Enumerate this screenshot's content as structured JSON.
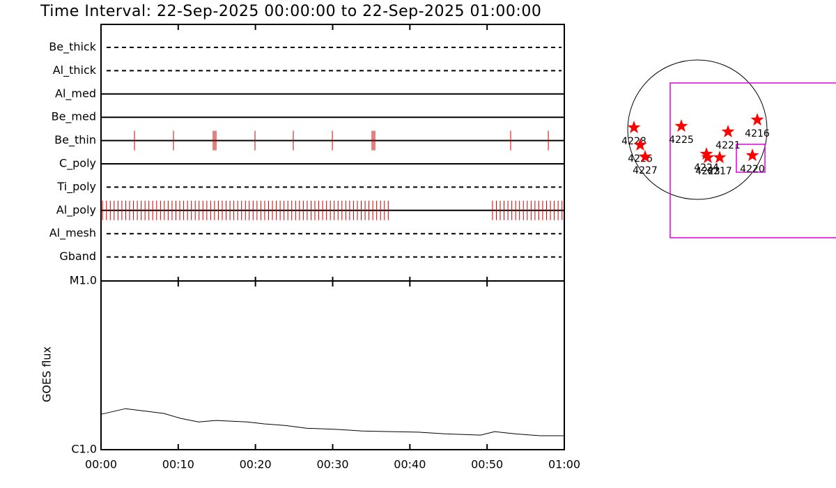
{
  "chart_data": [
    {
      "type": "timeline",
      "title": "Time Interval: 22-Sep-2025 00:00:00 to 22-Sep-2025 01:00:00",
      "xlim": [
        0,
        60
      ],
      "event_color": "#cc0000",
      "rows": [
        {
          "name": "Be_thick",
          "style": "dashed",
          "events": []
        },
        {
          "name": "Al_thick",
          "style": "dashed",
          "events": []
        },
        {
          "name": "Al_med",
          "style": "solid",
          "events": []
        },
        {
          "name": "Be_med",
          "style": "solid",
          "events": []
        },
        {
          "name": "Be_thin",
          "style": "solid",
          "events": [
            4.33,
            9.38,
            14.53,
            14.71,
            14.89,
            19.94,
            24.9,
            29.96,
            35.1,
            35.28,
            35.46,
            53.05,
            57.93
          ]
        },
        {
          "name": "C_poly",
          "style": "solid",
          "events": []
        },
        {
          "name": "Ti_poly",
          "style": "dashed",
          "events": []
        },
        {
          "name": "Al_poly",
          "style": "solid",
          "events": [
            0.2,
            0.7,
            1.2,
            1.7,
            2.2,
            2.7,
            3.2,
            3.7,
            4.2,
            4.7,
            5.2,
            5.7,
            6.2,
            6.7,
            7.2,
            7.7,
            8.2,
            8.7,
            9.2,
            9.7,
            10.2,
            10.7,
            11.2,
            11.7,
            12.2,
            12.7,
            13.2,
            13.7,
            14.2,
            14.7,
            15.2,
            15.7,
            16.2,
            16.7,
            17.2,
            17.7,
            18.2,
            18.7,
            19.2,
            19.7,
            20.2,
            20.7,
            21.2,
            21.7,
            22.2,
            22.7,
            23.2,
            23.7,
            24.2,
            24.7,
            25.2,
            25.7,
            26.2,
            26.7,
            27.2,
            27.7,
            28.2,
            28.7,
            29.2,
            29.7,
            30.2,
            30.7,
            31.2,
            31.7,
            32.2,
            32.7,
            33.2,
            33.7,
            34.2,
            34.7,
            35.2,
            35.7,
            36.2,
            36.7,
            37.2,
            50.7,
            51.2,
            51.7,
            52.2,
            52.7,
            53.2,
            53.7,
            54.2,
            54.7,
            55.2,
            55.7,
            56.2,
            56.7,
            57.2,
            57.7,
            58.2,
            58.7,
            59.2,
            59.7
          ]
        },
        {
          "name": "Al_mesh",
          "style": "dashed",
          "events": []
        },
        {
          "name": "Gband",
          "style": "dashed",
          "events": []
        }
      ]
    },
    {
      "type": "line",
      "ylabel": "GOES flux",
      "color": "#000000",
      "log_y": true,
      "x": [
        0,
        3.16,
        5.86,
        8.12,
        10.38,
        12.63,
        14.89,
        18.95,
        21.2,
        23.91,
        26.62,
        30.23,
        33.84,
        37.45,
        41.06,
        44.67,
        49.18,
        50.98,
        53.69,
        56.85,
        60
      ],
      "values": [
        1.62e-06,
        1.75e-06,
        1.69e-06,
        1.64e-06,
        1.53e-06,
        1.46e-06,
        1.49e-06,
        1.46e-06,
        1.42e-06,
        1.39e-06,
        1.34e-06,
        1.32e-06,
        1.29e-06,
        1.28e-06,
        1.27e-06,
        1.24e-06,
        1.22e-06,
        1.28e-06,
        1.24e-06,
        1.21e-06,
        1.21e-06
      ],
      "xlim": [
        0,
        60
      ],
      "xticks": [
        {
          "value": 0,
          "label": "00:00"
        },
        {
          "value": 10,
          "label": "00:10"
        },
        {
          "value": 20,
          "label": "00:20"
        },
        {
          "value": 30,
          "label": "00:30"
        },
        {
          "value": 40,
          "label": "00:40"
        },
        {
          "value": 50,
          "label": "00:50"
        },
        {
          "value": 60,
          "label": "01:00"
        }
      ],
      "ylim": [
        1e-06,
        1e-05
      ],
      "yticks": [
        {
          "value": 1e-06,
          "label": "C1.0"
        },
        {
          "value": 1e-05,
          "label": "M1.0"
        }
      ]
    },
    {
      "type": "scatter",
      "color": "#ff0000",
      "labels": [
        "4228",
        "4226",
        "4227",
        "4225",
        "4221",
        "4216",
        "4224",
        "4223",
        "4217",
        "4220"
      ],
      "x": [
        -0.91,
        -0.82,
        -0.75,
        -0.23,
        0.44,
        0.86,
        0.13,
        0.15,
        0.32,
        0.79
      ],
      "y": [
        0.03,
        -0.22,
        -0.39,
        0.05,
        -0.03,
        0.14,
        -0.35,
        -0.4,
        -0.4,
        -0.37
      ],
      "xlim": [
        -1,
        1
      ],
      "ylim": [
        -1,
        1
      ]
    }
  ]
}
